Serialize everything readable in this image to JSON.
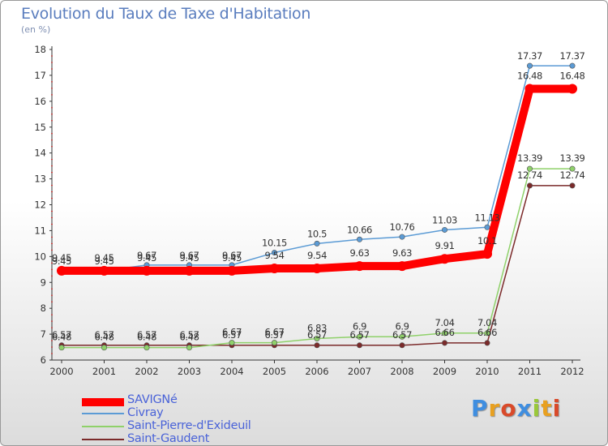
{
  "title": "Evolution du Taux de Taxe d'Habitation",
  "subtitle": "(en %)",
  "logo": {
    "text": "Proxiti",
    "letters": [
      {
        "ch": "P",
        "color": "#3f8ee0"
      },
      {
        "ch": "r",
        "color": "#e8a020"
      },
      {
        "ch": "o",
        "color": "#d94a2a"
      },
      {
        "ch": "x",
        "color": "#3f8ee0"
      },
      {
        "ch": "i",
        "color": "#9ac83a"
      },
      {
        "ch": "t",
        "color": "#e8a020"
      },
      {
        "ch": "i",
        "color": "#d94a2a"
      }
    ]
  },
  "chart_data": {
    "type": "line",
    "title": "Evolution du Taux de Taxe d'Habitation",
    "ylabel": "(en %)",
    "xlabel": "",
    "x": [
      "2000",
      "2001",
      "2002",
      "2003",
      "2004",
      "2005",
      "2006",
      "2007",
      "2008",
      "2009",
      "2010",
      "2011",
      "2012"
    ],
    "ylim": [
      6,
      18
    ],
    "yticks": [
      6,
      7,
      8,
      9,
      10,
      11,
      12,
      13,
      14,
      15,
      16,
      17,
      18
    ],
    "grid": false,
    "legend": "bottom-left",
    "series": [
      {
        "name": "SAVIGNé",
        "color": "#ff0000",
        "values": [
          9.45,
          9.45,
          9.45,
          9.45,
          9.45,
          9.54,
          9.54,
          9.63,
          9.63,
          9.91,
          10.1,
          16.48,
          16.48
        ],
        "labels": [
          "9.45",
          "9.45",
          "9.45",
          "9.45",
          "9.45",
          "9.54",
          "9.54",
          "9.63",
          "9.63",
          "9.91",
          "10.1",
          "16.48",
          "16.48"
        ]
      },
      {
        "name": "Civray",
        "color": "#5b9bd5",
        "values": [
          9.45,
          9.45,
          9.67,
          9.67,
          9.67,
          10.15,
          10.5,
          10.66,
          10.76,
          11.03,
          11.13,
          17.37,
          17.37
        ],
        "labels": [
          "9.45",
          "9.45",
          "9.67",
          "9.67",
          "9.67",
          "10.15",
          "10.5",
          "10.66",
          "10.76",
          "11.03",
          "11.13",
          "17.37",
          "17.37"
        ]
      },
      {
        "name": "Saint-Pierre-d'Exideuil",
        "color": "#8fd16a",
        "values": [
          6.48,
          6.48,
          6.48,
          6.48,
          6.67,
          6.67,
          6.83,
          6.9,
          6.9,
          7.04,
          7.04,
          13.39,
          13.39
        ],
        "labels": [
          "6.48",
          "6.48",
          "6.48",
          "6.48",
          "6.67",
          "6.67",
          "6.83",
          "6.9",
          "6.9",
          "7.04",
          "7.04",
          "13.39",
          "13.39"
        ]
      },
      {
        "name": "Saint-Gaudent",
        "color": "#7b2a2a",
        "values": [
          6.57,
          6.57,
          6.57,
          6.57,
          6.57,
          6.57,
          6.57,
          6.57,
          6.57,
          6.66,
          6.66,
          12.74,
          12.74
        ],
        "labels": [
          "6.57",
          "6.57",
          "6.57",
          "6.57",
          "6.57",
          "6.57",
          "6.57",
          "6.57",
          "6.57",
          "6.66",
          "6.66",
          "12.74",
          "12.74"
        ]
      }
    ]
  }
}
